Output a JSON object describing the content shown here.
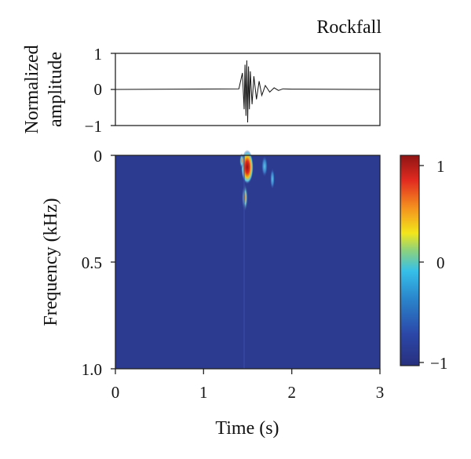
{
  "chart_data": [
    {
      "type": "line",
      "title": "Rockfall",
      "ylabel_line1": "Normalized",
      "ylabel_line2": "amplitude",
      "xlim": [
        0,
        3
      ],
      "ylim": [
        -1,
        1
      ],
      "yticks": [
        "1",
        "0",
        "−1"
      ],
      "series": [
        {
          "x": [
            0.0,
            1.4,
            1.44,
            1.46,
            1.47,
            1.48,
            1.49,
            1.5,
            1.51,
            1.52,
            1.53,
            1.55,
            1.57,
            1.6,
            1.63,
            1.66,
            1.7,
            1.75,
            1.8,
            1.85,
            1.9,
            2.0,
            3.0
          ],
          "y": [
            0.0,
            0.02,
            0.5,
            -0.6,
            0.75,
            -0.8,
            0.88,
            -1.0,
            0.7,
            -0.6,
            0.55,
            -0.45,
            0.4,
            -0.3,
            0.25,
            -0.18,
            0.12,
            -0.08,
            0.05,
            -0.03,
            0.02,
            0.01,
            0.0
          ]
        }
      ]
    },
    {
      "type": "heatmap",
      "xlabel": "Time (s)",
      "ylabel": "Frequency (kHz)",
      "xlim": [
        0,
        3
      ],
      "ylim": [
        0,
        1.0
      ],
      "xticks": [
        "0",
        "1",
        "2",
        "3"
      ],
      "yticks": [
        "0",
        "0.5",
        "1.0"
      ],
      "colorbar": {
        "range": [
          -1,
          1
        ],
        "ticks": [
          "1",
          "0",
          "−1"
        ]
      },
      "background_value": -1,
      "hotspots": [
        {
          "t": 1.5,
          "f": 0.05,
          "value": 1.0
        },
        {
          "t": 1.52,
          "f": 0.1,
          "value": 0.6
        },
        {
          "t": 1.49,
          "f": 0.2,
          "value": 0.2
        },
        {
          "t": 1.68,
          "f": 0.08,
          "value": -0.2
        },
        {
          "t": 1.72,
          "f": 0.15,
          "value": -0.4
        }
      ]
    }
  ],
  "colors": {
    "colormap": [
      "#2c2d90",
      "#1f55b5",
      "#2aa9e0",
      "#6cc77f",
      "#f3e61b",
      "#f4921f",
      "#e22b20",
      "#8f1414"
    ],
    "background": "#2c3a8f"
  }
}
